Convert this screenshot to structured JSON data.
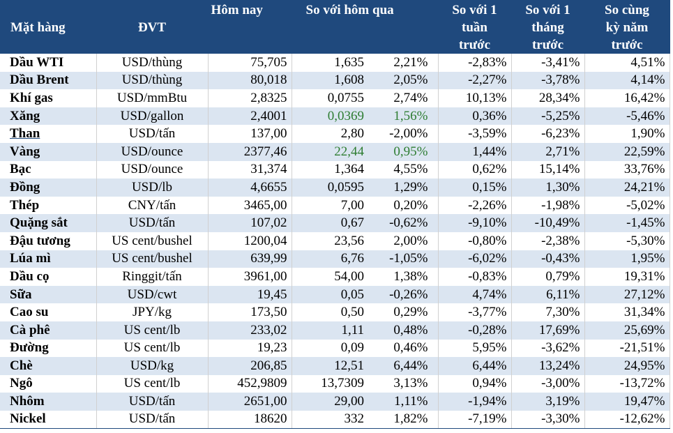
{
  "header": {
    "name": "Mặt hàng",
    "unit": "ĐVT",
    "today": "Hôm nay",
    "vs_yesterday": "So với hôm qua",
    "vs_week_line1": "So với 1",
    "vs_week_line2": "tuần",
    "vs_week_line3": "trước",
    "vs_month_line1": "So với 1",
    "vs_month_line2": "tháng",
    "vs_month_line3": "trước",
    "vs_year_line1": "So cùng",
    "vs_year_line2": "kỳ năm",
    "vs_year_line3": "trước"
  },
  "rows": [
    {
      "name": "Dầu WTI",
      "unit": "USD/thùng",
      "today": "75,705",
      "day_abs": "1,635",
      "day_pct": "2,21%",
      "week": "-2,83%",
      "month": "-3,41%",
      "year": "4,51%"
    },
    {
      "name": "Dầu Brent",
      "unit": "USD/thùng",
      "today": "80,018",
      "day_abs": "1,608",
      "day_pct": "2,05%",
      "week": "-2,27%",
      "month": "-3,78%",
      "year": "4,14%"
    },
    {
      "name": "Khí gas",
      "unit": "USD/mmBtu",
      "today": "2,8325",
      "day_abs": "0,0755",
      "day_pct": "2,74%",
      "week": "10,13%",
      "month": "28,34%",
      "year": "16,42%"
    },
    {
      "name": "Xăng",
      "unit": "USD/gallon",
      "today": "2,4001",
      "day_abs": "0,0369",
      "day_pct": "1,56%",
      "week": "0,36%",
      "month": "-5,25%",
      "year": "-5,46%"
    },
    {
      "name": "Than",
      "unit": "USD/tấn",
      "today": "137,00",
      "day_abs": "2,80",
      "day_pct": "-2,00%",
      "week": "-3,59%",
      "month": "-6,23%",
      "year": "1,90%"
    },
    {
      "name": "Vàng",
      "unit": "USD/ounce",
      "today": "2377,46",
      "day_abs": "22,44",
      "day_pct": "0,95%",
      "week": "1,44%",
      "month": "2,71%",
      "year": "22,59%"
    },
    {
      "name": "Bạc",
      "unit": "USD/ounce",
      "today": "31,374",
      "day_abs": "1,364",
      "day_pct": "4,55%",
      "week": "0,62%",
      "month": "15,14%",
      "year": "33,76%"
    },
    {
      "name": "Đồng",
      "unit": "USD/lb",
      "today": "4,6655",
      "day_abs": "0,0595",
      "day_pct": "1,29%",
      "week": "0,15%",
      "month": "1,30%",
      "year": "24,21%"
    },
    {
      "name": "Thép",
      "unit": "CNY/tấn",
      "today": "3465,00",
      "day_abs": "7,00",
      "day_pct": "0,20%",
      "week": "-2,26%",
      "month": "-1,98%",
      "year": "-5,02%"
    },
    {
      "name": "Quặng sắt",
      "unit": "USD/tấn",
      "today": "107,02",
      "day_abs": "0,67",
      "day_pct": "-0,62%",
      "week": "-9,10%",
      "month": "-10,49%",
      "year": "-1,45%"
    },
    {
      "name": "Đậu tương",
      "unit": "US cent/bushel",
      "today": "1200,04",
      "day_abs": "23,56",
      "day_pct": "2,00%",
      "week": "-0,80%",
      "month": "-2,38%",
      "year": "-5,30%"
    },
    {
      "name": "Lúa mì",
      "unit": "US cent/bushel",
      "today": "639,99",
      "day_abs": "6,76",
      "day_pct": "-1,05%",
      "week": "-6,02%",
      "month": "-0,43%",
      "year": "1,95%"
    },
    {
      "name": "Dầu cọ",
      "unit": "Ringgit/tấn",
      "today": "3961,00",
      "day_abs": "54,00",
      "day_pct": "1,38%",
      "week": "-0,83%",
      "month": "0,79%",
      "year": "19,31%"
    },
    {
      "name": "Sữa",
      "unit": "USD/cwt",
      "today": "19,45",
      "day_abs": "0,05",
      "day_pct": "-0,26%",
      "week": "4,74%",
      "month": "6,11%",
      "year": "27,12%"
    },
    {
      "name": "Cao su",
      "unit": "JPY/kg",
      "today": "173,50",
      "day_abs": "0,50",
      "day_pct": "0,29%",
      "week": "-3,77%",
      "month": "7,30%",
      "year": "31,34%"
    },
    {
      "name": "Cà phê",
      "unit": "US cent/lb",
      "today": "233,02",
      "day_abs": "1,11",
      "day_pct": "0,48%",
      "week": "-0,28%",
      "month": "17,69%",
      "year": "25,69%"
    },
    {
      "name": "Đường",
      "unit": "US cent/lb",
      "today": "19,23",
      "day_abs": "0,09",
      "day_pct": "0,46%",
      "week": "5,95%",
      "month": "-3,62%",
      "year": "-21,51%"
    },
    {
      "name": "Chè",
      "unit": "USD/kg",
      "today": "206,85",
      "day_abs": "12,51",
      "day_pct": "6,44%",
      "week": "6,44%",
      "month": "13,24%",
      "year": "24,95%"
    },
    {
      "name": "Ngô",
      "unit": "US cent/lb",
      "today": "452,9809",
      "day_abs": "13,7309",
      "day_pct": "3,13%",
      "week": "0,94%",
      "month": "-3,00%",
      "year": "-13,72%"
    },
    {
      "name": "Nhôm",
      "unit": "USD/tấn",
      "today": "2651,00",
      "day_abs": "29,00",
      "day_pct": "1,11%",
      "week": "-1,94%",
      "month": "3,19%",
      "year": "19,47%"
    },
    {
      "name": "Nickel",
      "unit": "USD/tấn",
      "today": "18620",
      "day_abs": "332",
      "day_pct": "1,82%",
      "week": "-7,19%",
      "month": "-3,30%",
      "year": "-12,62%"
    }
  ],
  "styles": {
    "header_bg": "#1f497d",
    "stripe_bg": "#dbe5f1",
    "highlight_green": "#2e7d32",
    "green_rows": [
      3,
      5
    ]
  }
}
